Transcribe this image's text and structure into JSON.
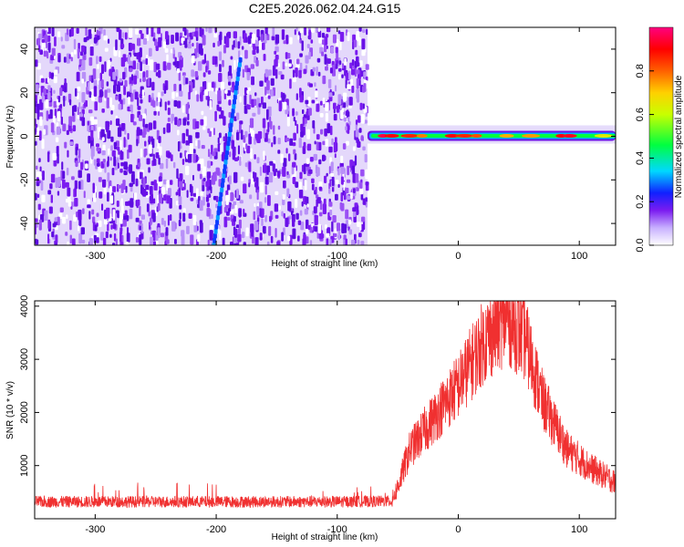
{
  "figure": {
    "title": "C2E5.2026.062.04.24.G15"
  },
  "chart_data": [
    {
      "type": "heatmap",
      "title": "C2E5.2026.062.04.24.G15",
      "xlabel": "Height of straight line (km)",
      "ylabel": "Frequency (Hz)",
      "xlim": [
        -350,
        130
      ],
      "ylim": [
        -50,
        50
      ],
      "xticks": [
        -300,
        -200,
        -100,
        0,
        100
      ],
      "yticks": [
        -40,
        -20,
        0,
        20,
        40
      ],
      "colorbar": {
        "label": "Normalized spectral amplitude",
        "range": [
          0,
          1
        ],
        "ticks": [
          0.0,
          0.2,
          0.4,
          0.6,
          0.8
        ],
        "tick_labels": [
          "0.0",
          "0.2",
          "0.4",
          "0.6",
          "0.8"
        ],
        "colors": [
          "#ffffff",
          "#7b1cf0",
          "#1020ff",
          "#00d8ff",
          "#00ff40",
          "#c8ff00",
          "#ffd000",
          "#ff6000",
          "#ff0000",
          "#ff0080"
        ]
      },
      "regions": [
        {
          "name": "noise",
          "x_range": [
            -350,
            -75
          ],
          "y_range": [
            -50,
            50
          ],
          "amplitude_range": [
            0.0,
            0.2
          ]
        },
        {
          "name": "streak",
          "x_range": [
            -202,
            -180
          ],
          "y_range": [
            -50,
            35
          ],
          "amplitude_range": [
            0.2,
            0.3
          ]
        },
        {
          "name": "carrier",
          "x_range": [
            -75,
            130
          ],
          "y_range": [
            -3,
            3
          ],
          "amplitude_range": [
            0.3,
            1.0
          ]
        }
      ]
    },
    {
      "type": "line",
      "xlabel": "Height of straight line (km)",
      "ylabel": "SNR (10 * v/v)",
      "xlim": [
        -350,
        130
      ],
      "ylim": [
        0,
        4100
      ],
      "xticks": [
        -300,
        -200,
        -100,
        0,
        100
      ],
      "yticks": [
        1000,
        2000,
        3000,
        4000
      ],
      "color": "#f03030",
      "envelope": {
        "x": [
          -350,
          -100,
          -55,
          -50,
          -40,
          -20,
          0,
          20,
          40,
          55,
          70,
          90,
          110,
          130
        ],
        "y": [
          320,
          320,
          330,
          600,
          1300,
          1900,
          2500,
          3300,
          3800,
          3400,
          2200,
          1300,
          950,
          680
        ]
      }
    }
  ]
}
